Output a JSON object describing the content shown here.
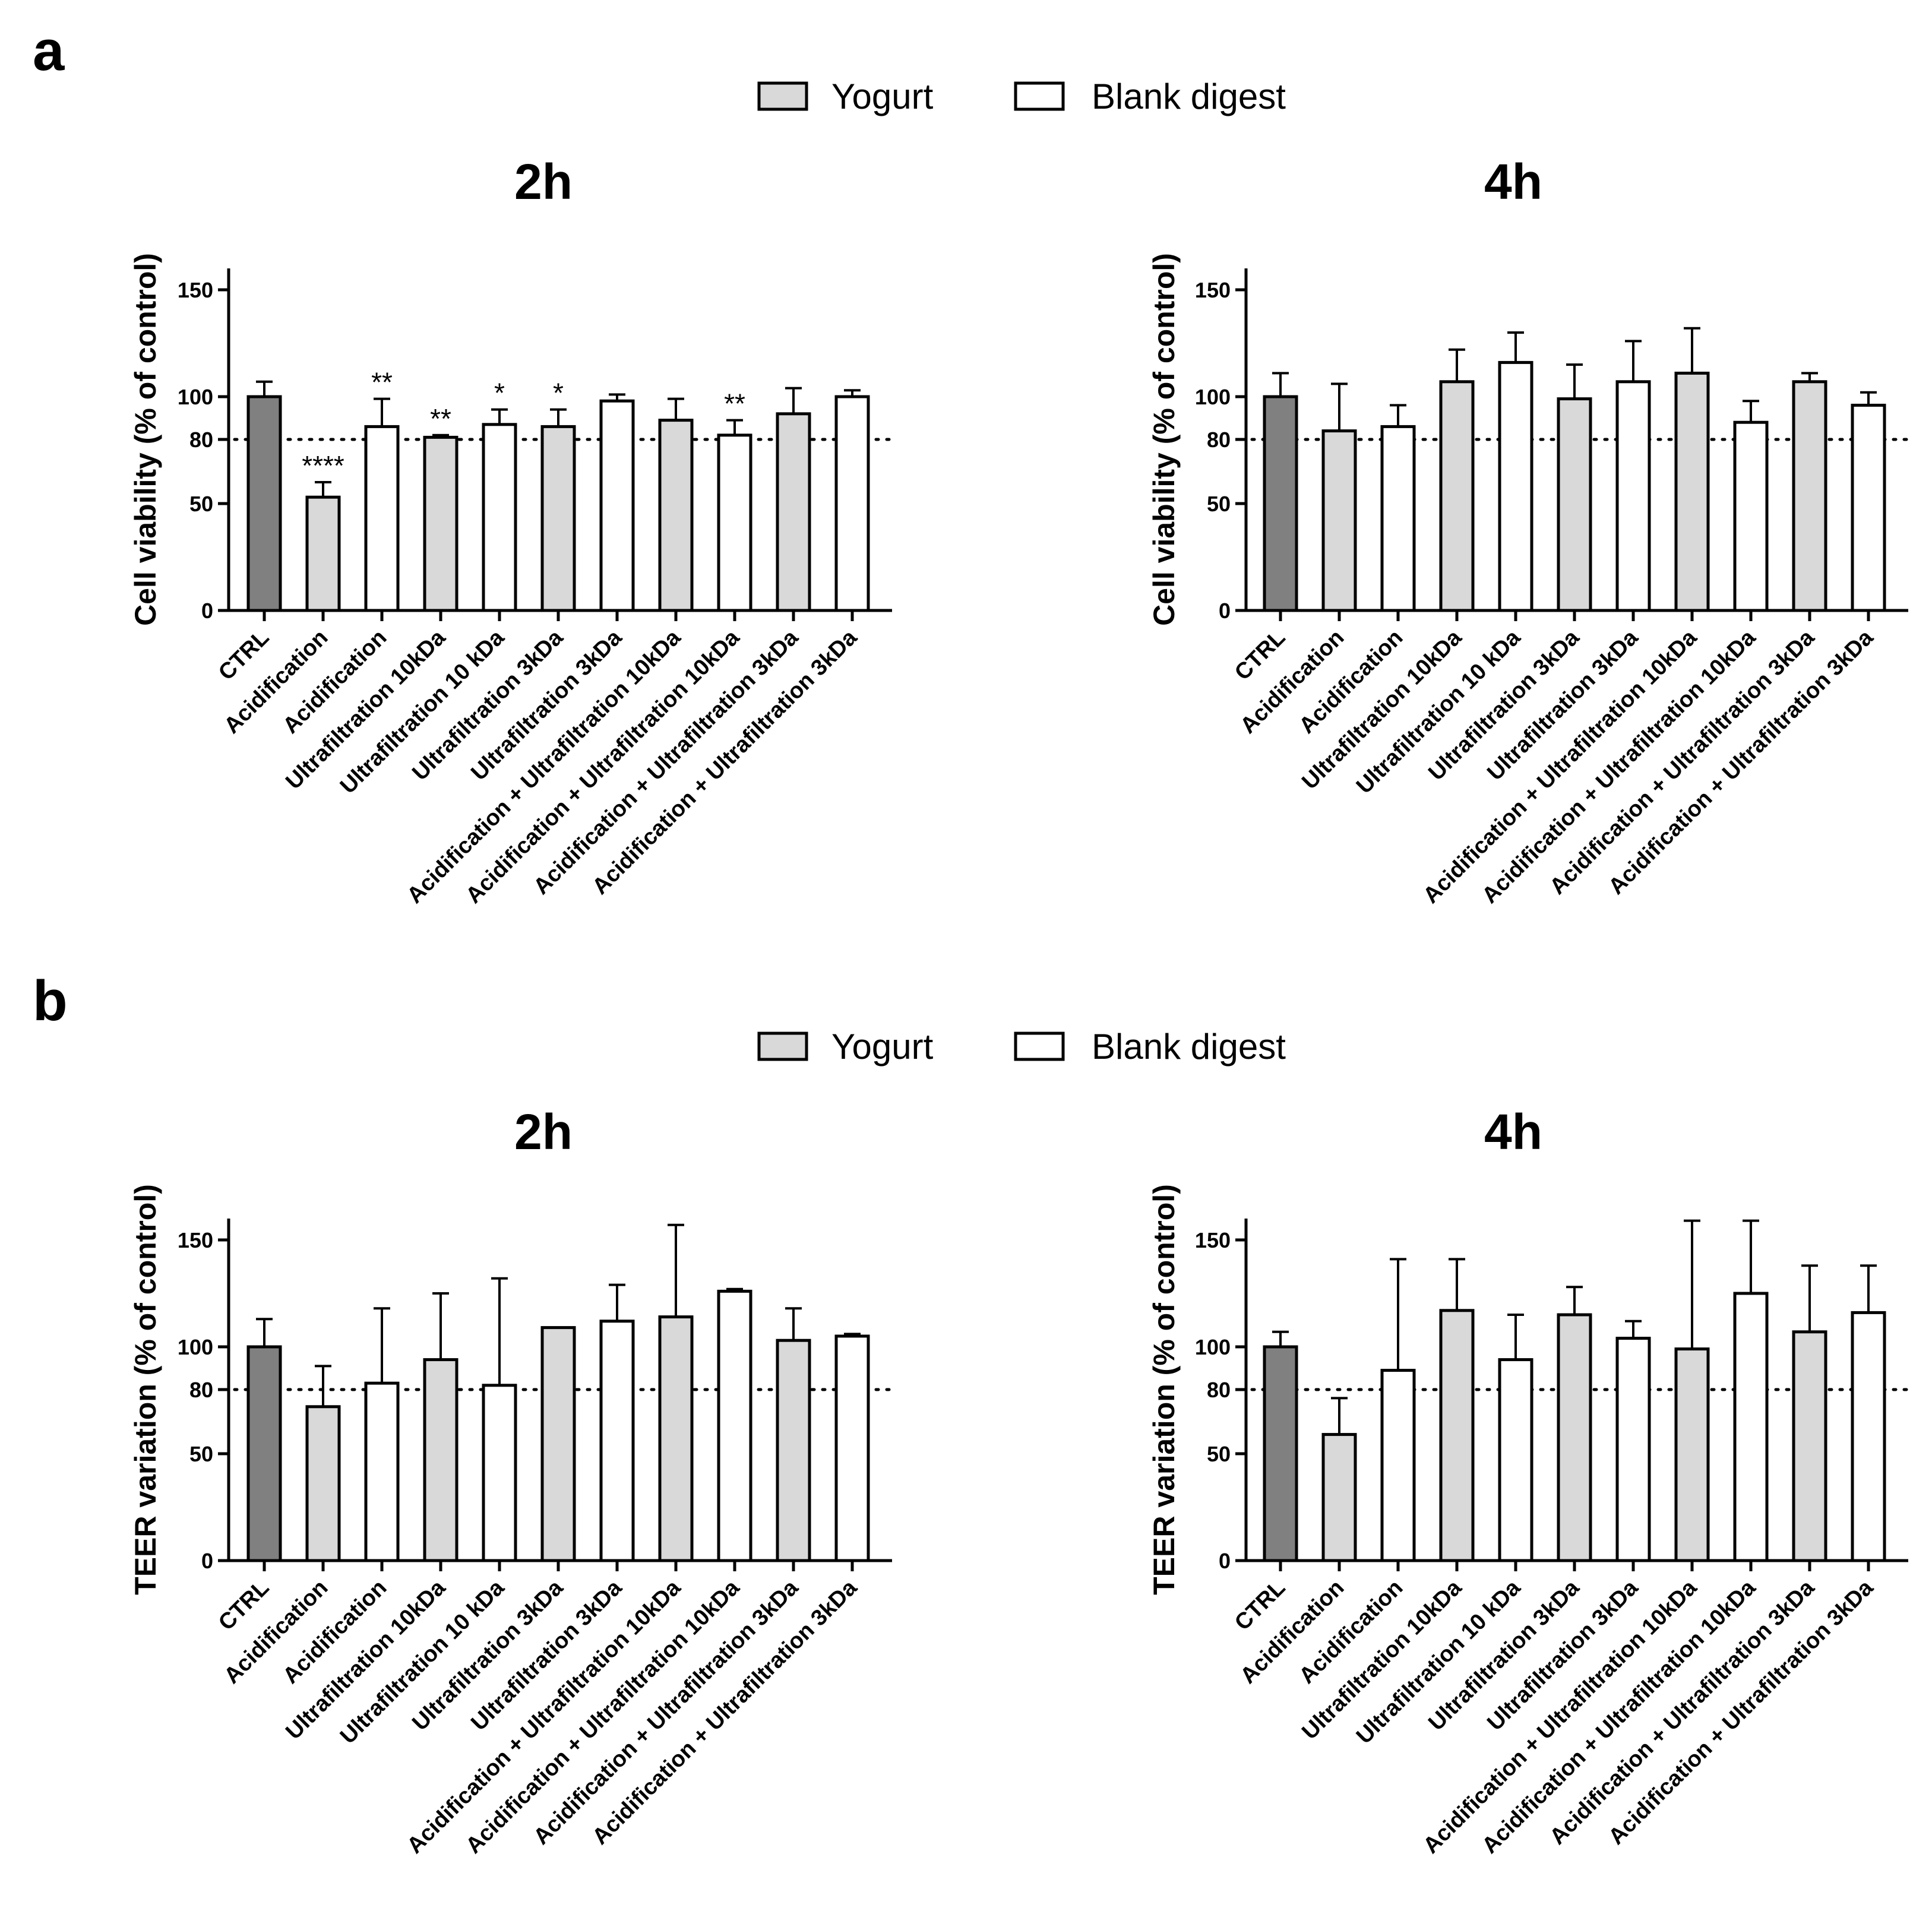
{
  "figure": {
    "panels": [
      {
        "letter": "a",
        "legend": [
          {
            "label": "Yogurt",
            "color": "#d9d9d9"
          },
          {
            "label": "Blank digest",
            "color": "#ffffff"
          }
        ]
      },
      {
        "letter": "b",
        "legend": [
          {
            "label": "Yogurt",
            "color": "#d9d9d9"
          },
          {
            "label": "Blank digest",
            "color": "#ffffff"
          }
        ]
      }
    ],
    "colors": {
      "control": "#808080",
      "yogurt": "#d9d9d9",
      "blank": "#ffffff"
    }
  },
  "chart_data": [
    {
      "type": "bar",
      "panel": "a",
      "title": "2h",
      "ylabel": "Cell viability (% of control)",
      "yticks": [
        0,
        50,
        80,
        100,
        150
      ],
      "ylim": [
        0,
        160
      ],
      "reference_line": 80,
      "categories": [
        "CTRL",
        "Acidification",
        "Acidification",
        "Ultrafiltration 10kDa",
        "Ultrafiltration 10 kDa",
        "Ultrafiltration 3kDa",
        "Ultrafiltration 3kDa",
        "Acidification + Ultrafiltration 10kDa",
        "Acidification + Ultrafiltration 10kDa",
        "Acidification + Ultrafiltration 3kDa",
        "Acidification + Ultrafiltration 3kDa"
      ],
      "groups": [
        "control",
        "yogurt",
        "blank",
        "yogurt",
        "blank",
        "yogurt",
        "blank",
        "yogurt",
        "blank",
        "yogurt",
        "blank"
      ],
      "values": [
        100,
        53,
        86,
        81,
        87,
        86,
        98,
        89,
        82,
        92,
        100
      ],
      "errors": [
        7,
        7,
        13,
        1,
        7,
        8,
        3,
        10,
        7,
        12,
        3
      ],
      "significance": [
        "",
        "****",
        "**",
        "**",
        "*",
        "*",
        "",
        "",
        "**",
        "",
        ""
      ]
    },
    {
      "type": "bar",
      "panel": "a",
      "title": "4h",
      "ylabel": "Cell viability (% of control)",
      "yticks": [
        0,
        50,
        80,
        100,
        150
      ],
      "ylim": [
        0,
        160
      ],
      "reference_line": 80,
      "categories": [
        "CTRL",
        "Acidification",
        "Acidification",
        "Ultrafiltration 10kDa",
        "Ultrafiltration 10 kDa",
        "Ultrafiltration 3kDa",
        "Ultrafiltration 3kDa",
        "Acidification + Ultrafiltration 10kDa",
        "Acidification + Ultrafiltration 10kDa",
        "Acidification + Ultrafiltration 3kDa",
        "Acidification + Ultrafiltration 3kDa"
      ],
      "groups": [
        "control",
        "yogurt",
        "blank",
        "yogurt",
        "blank",
        "yogurt",
        "blank",
        "yogurt",
        "blank",
        "yogurt",
        "blank"
      ],
      "values": [
        100,
        84,
        86,
        107,
        116,
        99,
        107,
        111,
        88,
        107,
        96
      ],
      "errors": [
        11,
        22,
        10,
        15,
        14,
        16,
        19,
        21,
        10,
        4,
        6
      ],
      "significance": [
        "",
        "",
        "",
        "",
        "",
        "",
        "",
        "",
        "",
        "",
        ""
      ]
    },
    {
      "type": "bar",
      "panel": "b",
      "title": "2h",
      "ylabel": "TEER variation (% of control)",
      "yticks": [
        0,
        50,
        80,
        100,
        150
      ],
      "ylim": [
        0,
        160
      ],
      "reference_line": 80,
      "categories": [
        "CTRL",
        "Acidification",
        "Acidification",
        "Ultrafiltration 10kDa",
        "Ultrafiltration 10 kDa",
        "Ultrafiltration 3kDa",
        "Ultrafiltration 3kDa",
        "Acidification + Ultrafiltration 10kDa",
        "Acidification + Ultrafiltration 10kDa",
        "Acidification + Ultrafiltration 3kDa",
        "Acidification + Ultrafiltration 3kDa"
      ],
      "groups": [
        "control",
        "yogurt",
        "blank",
        "yogurt",
        "blank",
        "yogurt",
        "blank",
        "yogurt",
        "blank",
        "yogurt",
        "blank"
      ],
      "values": [
        100,
        72,
        83,
        94,
        82,
        109,
        112,
        114,
        126,
        103,
        105
      ],
      "errors": [
        13,
        19,
        35,
        31,
        50,
        0,
        17,
        43,
        1,
        15,
        1
      ],
      "significance": [
        "",
        "",
        "",
        "",
        "",
        "",
        "",
        "",
        "",
        "",
        ""
      ]
    },
    {
      "type": "bar",
      "panel": "b",
      "title": "4h",
      "ylabel": "TEER variation (% of control)",
      "yticks": [
        0,
        50,
        80,
        100,
        150
      ],
      "ylim": [
        0,
        160
      ],
      "reference_line": 80,
      "categories": [
        "CTRL",
        "Acidification",
        "Acidification",
        "Ultrafiltration 10kDa",
        "Ultrafiltration 10 kDa",
        "Ultrafiltration 3kDa",
        "Ultrafiltration 3kDa",
        "Acidification + Ultrafiltration 10kDa",
        "Acidification + Ultrafiltration 10kDa",
        "Acidification + Ultrafiltration 3kDa",
        "Acidification + Ultrafiltration 3kDa"
      ],
      "groups": [
        "control",
        "yogurt",
        "blank",
        "yogurt",
        "blank",
        "yogurt",
        "blank",
        "yogurt",
        "blank",
        "yogurt",
        "blank"
      ],
      "values": [
        100,
        59,
        89,
        117,
        94,
        115,
        104,
        99,
        125,
        107,
        116
      ],
      "errors": [
        7,
        17,
        52,
        24,
        21,
        13,
        8,
        60,
        34,
        31,
        22
      ],
      "significance": [
        "",
        "",
        "",
        "",
        "",
        "",
        "",
        "",
        "",
        "",
        ""
      ]
    }
  ]
}
